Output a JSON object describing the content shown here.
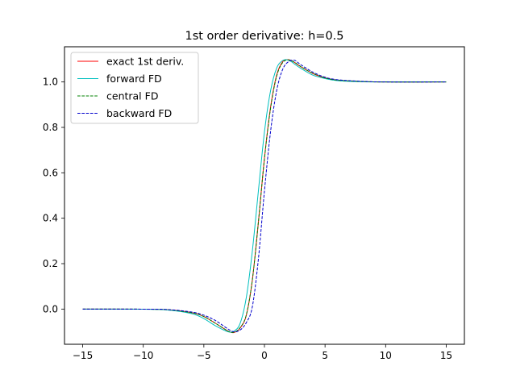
{
  "chart_data": {
    "type": "line",
    "title": "1st order derivative: h=0.5",
    "xlabel": "",
    "ylabel": "",
    "xlim": [
      -16.5,
      16.5
    ],
    "ylim": [
      -0.155,
      1.155
    ],
    "x_ticks": [
      -15,
      -10,
      -5,
      0,
      5,
      10,
      15
    ],
    "x_tick_labels": [
      "−15",
      "−10",
      "−5",
      "0",
      "5",
      "10",
      "15"
    ],
    "y_ticks": [
      0.0,
      0.2,
      0.4,
      0.6,
      0.8,
      1.0
    ],
    "y_tick_labels": [
      "0.0",
      "0.2",
      "0.4",
      "0.6",
      "0.8",
      "1.0"
    ],
    "grid": false,
    "legend_position": "upper-left",
    "h": 0.5,
    "series": [
      {
        "name": "exact 1st deriv.",
        "color": "#ff0000",
        "style": "solid",
        "x": [
          -15,
          -10,
          -8,
          -6,
          -5,
          -4,
          -3,
          -2.5,
          -2,
          -1.5,
          -1,
          -0.5,
          0,
          0.5,
          1,
          1.5,
          2,
          2.5,
          3,
          4,
          5,
          6,
          8,
          10,
          15
        ],
        "y": [
          0.0,
          -0.0005,
          -0.003,
          -0.016,
          -0.033,
          -0.064,
          -0.097,
          -0.103,
          -0.083,
          -0.028,
          0.127,
          0.382,
          0.664,
          0.887,
          1.029,
          1.089,
          1.098,
          1.085,
          1.067,
          1.037,
          1.018,
          1.008,
          1.002,
          1.0,
          1.0
        ]
      },
      {
        "name": "forward FD",
        "color": "#00bfbf",
        "style": "solid",
        "x": [
          -15,
          -10,
          -8,
          -6,
          -5,
          -4,
          -3,
          -2.5,
          -2,
          -1.5,
          -1,
          -0.5,
          0,
          0.5,
          1,
          1.5,
          2,
          2.5,
          3,
          4,
          5,
          6,
          8,
          10,
          15
        ],
        "y": [
          0.0,
          -0.0007,
          -0.004,
          -0.02,
          -0.042,
          -0.075,
          -0.1,
          -0.097,
          -0.062,
          0.05,
          0.255,
          0.52,
          0.78,
          0.96,
          1.06,
          1.094,
          1.096,
          1.078,
          1.06,
          1.03,
          1.015,
          1.006,
          1.001,
          1.0,
          1.0
        ]
      },
      {
        "name": "central FD",
        "color": "#008000",
        "style": "dashed",
        "x": [
          -15,
          -10,
          -8,
          -6,
          -5,
          -4,
          -3,
          -2.5,
          -2,
          -1.5,
          -1,
          -0.5,
          0,
          0.5,
          1,
          1.5,
          2,
          2.5,
          3,
          4,
          5,
          6,
          8,
          10,
          15
        ],
        "y": [
          0.0,
          -0.0005,
          -0.003,
          -0.016,
          -0.033,
          -0.064,
          -0.097,
          -0.102,
          -0.081,
          -0.026,
          0.128,
          0.383,
          0.662,
          0.882,
          1.024,
          1.085,
          1.097,
          1.086,
          1.068,
          1.038,
          1.018,
          1.008,
          1.002,
          1.0,
          1.0
        ]
      },
      {
        "name": "backward FD",
        "color": "#0000cc",
        "style": "dashed",
        "x": [
          -15,
          -10,
          -8,
          -6,
          -5,
          -4,
          -3,
          -2.5,
          -2,
          -1.5,
          -1,
          -0.5,
          0,
          0.5,
          1,
          1.5,
          2,
          2.5,
          3,
          4,
          5,
          6,
          8,
          10,
          15
        ],
        "y": [
          0.0,
          -0.0004,
          -0.002,
          -0.013,
          -0.027,
          -0.052,
          -0.088,
          -0.1,
          -0.092,
          -0.06,
          0.01,
          0.22,
          0.52,
          0.78,
          0.96,
          1.055,
          1.09,
          1.095,
          1.076,
          1.043,
          1.021,
          1.01,
          1.003,
          1.0,
          1.0
        ]
      }
    ]
  }
}
